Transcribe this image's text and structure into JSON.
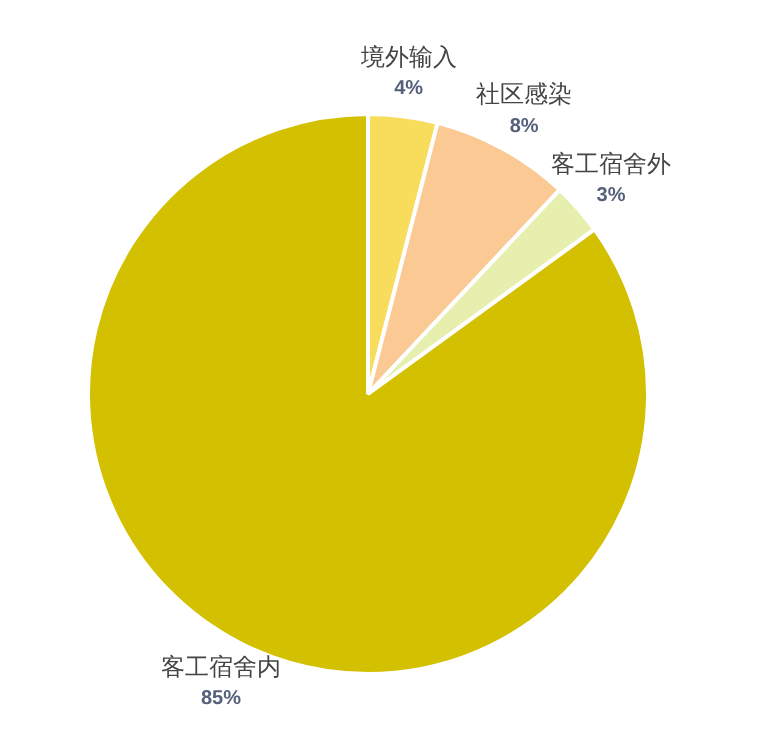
{
  "chart_data": {
    "type": "pie",
    "categories": [
      "境外输入",
      "社区感染",
      "客工宿舍外",
      "客工宿舍内"
    ],
    "values": [
      4,
      8,
      3,
      85
    ],
    "colors": [
      "#f8dc5c",
      "#fac994",
      "#e6efae",
      "#d3c000"
    ],
    "value_labels": [
      "4%",
      "8%",
      "3%",
      "85%"
    ],
    "legend": false
  }
}
